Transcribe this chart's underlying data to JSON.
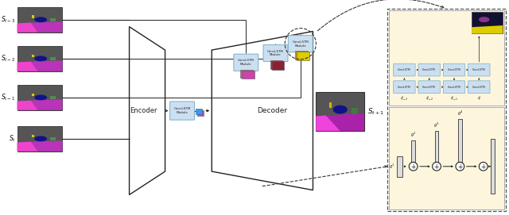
{
  "fig_width": 6.4,
  "fig_height": 2.71,
  "dpi": 100,
  "bg_color": "#ffffff",
  "panel_bg": "#fdf6dc",
  "box_fill": "#ccdff0",
  "box_edge": "#7aaec8",
  "labels_left": [
    "$S_{t-3}$",
    "$S_{t-2}$",
    "$S_{t-1}$",
    "$S_t$"
  ],
  "label_right": "$S_{t+1}$",
  "encoder_text": "Encoder",
  "decoder_text": "Decoder",
  "convlstm_text": "ConvLSTM\nModule",
  "bottom_labels": [
    "$f^4_{t-3}$",
    "$f^4_{t-2}$",
    "$f^4_{t-1}$",
    "$f^4_t$"
  ],
  "bottom_labels2": [
    "$g^1$",
    "$g^2$",
    "$g^3$",
    "$g^4$"
  ]
}
